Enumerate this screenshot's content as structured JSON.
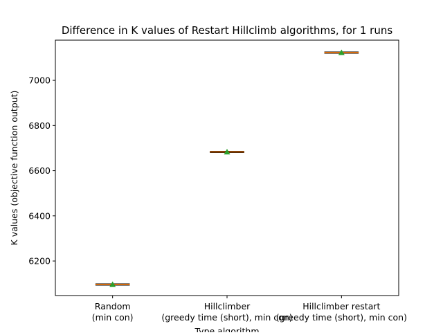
{
  "chart_data": {
    "type": "box",
    "title": "Difference in K values of Restart Hillclimb algorithms, for 1 runs",
    "xlabel": "Type algorithm",
    "ylabel": "K values (objective function output)",
    "categories": [
      [
        "Random",
        "(min con)"
      ],
      [
        "Hillclimber",
        "(greedy time (short), min con)"
      ],
      [
        "Hillclimber restart",
        "(greedy time (short), min con)"
      ]
    ],
    "values": [
      6096,
      6683,
      7123
    ],
    "means": [
      6096,
      6683,
      7123
    ],
    "ylim": [
      6047,
      7178
    ],
    "yticks": [
      6200,
      6400,
      6600,
      6800,
      7000
    ],
    "grid": false,
    "colors": {
      "median": "#ff7f0e",
      "mean_marker": "#2ca02c",
      "box": "#000000"
    }
  }
}
